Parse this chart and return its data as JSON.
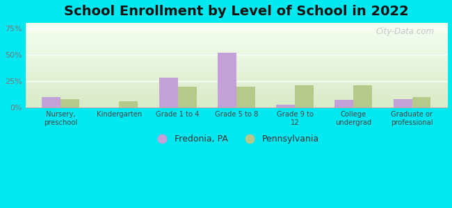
{
  "title": "School Enrollment by Level of School in 2022",
  "categories": [
    "Nursery,\npreschool",
    "Kindergarten",
    "Grade 1 to 4",
    "Grade 5 to 8",
    "Grade 9 to\n12",
    "College\nundergrad",
    "Graduate or\nprofessional"
  ],
  "fredonia_values": [
    10,
    0,
    28,
    52,
    3,
    7,
    8
  ],
  "pennsylvania_values": [
    8,
    6,
    20,
    20,
    21,
    21,
    10
  ],
  "fredonia_color": "#c4a0d8",
  "pennsylvania_color": "#b5c98a",
  "fredonia_label": "Fredonia, PA",
  "pennsylvania_label": "Pennsylvania",
  "yticks": [
    0,
    25,
    50,
    75
  ],
  "ytick_labels": [
    "0%",
    "25%",
    "50%",
    "75%"
  ],
  "ylim": [
    0,
    80
  ],
  "background_outer": "#00e8f0",
  "title_fontsize": 14,
  "watermark": "City-Data.com"
}
